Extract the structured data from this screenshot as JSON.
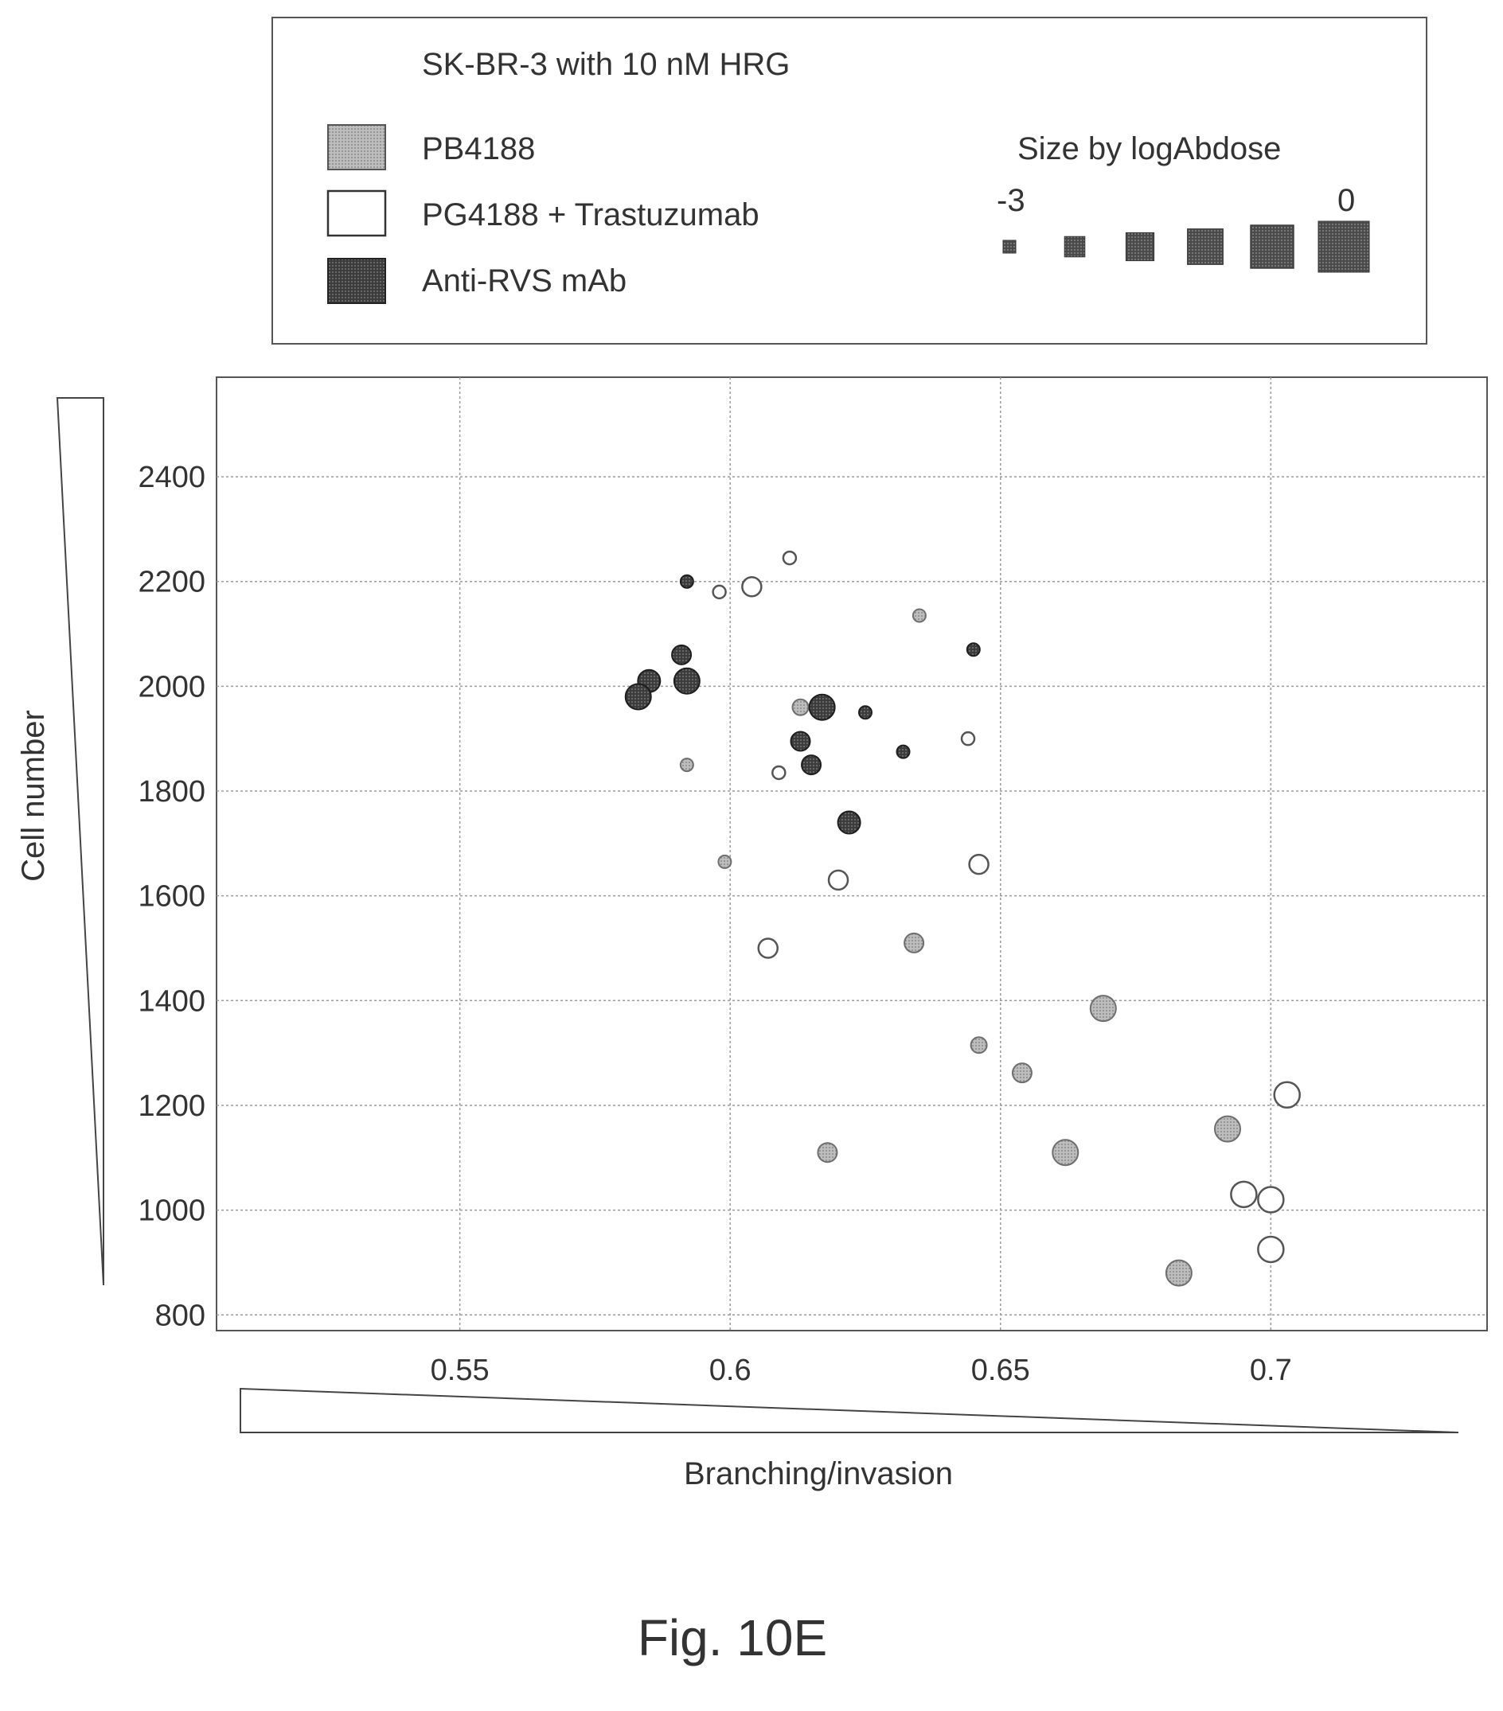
{
  "chart_data": {
    "type": "scatter",
    "title": "SK-BR-3 with 10 nM HRG",
    "xlabel": "Branching/invasion",
    "ylabel": "Cell number",
    "xlim": [
      0.505,
      0.74
    ],
    "ylim": [
      770,
      2590
    ],
    "x_ticks": [
      "0.55",
      "0.6",
      "0.65",
      "0.7"
    ],
    "x_tick_values": [
      0.55,
      0.6,
      0.65,
      0.7
    ],
    "y_ticks": [
      "800",
      "1000",
      "1200",
      "1400",
      "1600",
      "1800",
      "2000",
      "2200",
      "2400"
    ],
    "y_tick_values": [
      800,
      1000,
      1200,
      1400,
      1600,
      1800,
      2000,
      2200,
      2400
    ],
    "grid": true,
    "size_legend": {
      "label": "Size by logAbdose",
      "min_label": "-3",
      "max_label": "0",
      "steps": [
        -3,
        -2.4,
        -1.8,
        -1.2,
        -0.6,
        0
      ]
    },
    "series": [
      {
        "name": "PB4188",
        "color": "#9a9a9a",
        "stroke": "#6e6e6e",
        "points": [
          {
            "x": 0.592,
            "y": 1850,
            "logdose": -3
          },
          {
            "x": 0.599,
            "y": 1665,
            "logdose": -3
          },
          {
            "x": 0.635,
            "y": 2135,
            "logdose": -3
          },
          {
            "x": 0.613,
            "y": 1960,
            "logdose": -2.4
          },
          {
            "x": 0.634,
            "y": 1510,
            "logdose": -1.8
          },
          {
            "x": 0.646,
            "y": 1315,
            "logdose": -2.4
          },
          {
            "x": 0.654,
            "y": 1262,
            "logdose": -1.8
          },
          {
            "x": 0.669,
            "y": 1385,
            "logdose": -0.6
          },
          {
            "x": 0.692,
            "y": 1155,
            "logdose": -0.6
          },
          {
            "x": 0.662,
            "y": 1110,
            "logdose": -0.6
          },
          {
            "x": 0.618,
            "y": 1110,
            "logdose": -1.8
          },
          {
            "x": 0.683,
            "y": 880,
            "logdose": -0.6
          }
        ]
      },
      {
        "name": "PG4188 + Trastuzumab",
        "color": "#ffffff",
        "stroke": "#555555",
        "points": [
          {
            "x": 0.611,
            "y": 2245,
            "logdose": -3
          },
          {
            "x": 0.598,
            "y": 2180,
            "logdose": -3
          },
          {
            "x": 0.604,
            "y": 2190,
            "logdose": -1.8
          },
          {
            "x": 0.644,
            "y": 1900,
            "logdose": -3
          },
          {
            "x": 0.609,
            "y": 1835,
            "logdose": -3
          },
          {
            "x": 0.646,
            "y": 1660,
            "logdose": -1.8
          },
          {
            "x": 0.62,
            "y": 1630,
            "logdose": -1.8
          },
          {
            "x": 0.607,
            "y": 1500,
            "logdose": -1.8
          },
          {
            "x": 0.703,
            "y": 1220,
            "logdose": -0.6
          },
          {
            "x": 0.695,
            "y": 1030,
            "logdose": -0.6
          },
          {
            "x": 0.7,
            "y": 1020,
            "logdose": -0.6
          },
          {
            "x": 0.7,
            "y": 925,
            "logdose": -0.6
          }
        ]
      },
      {
        "name": "Anti-RVS mAb",
        "color": "#3a3a3a",
        "stroke": "#1e1e1e",
        "points": [
          {
            "x": 0.592,
            "y": 2200,
            "logdose": -3
          },
          {
            "x": 0.591,
            "y": 2060,
            "logdose": -1.8
          },
          {
            "x": 0.585,
            "y": 2010,
            "logdose": -1.2
          },
          {
            "x": 0.583,
            "y": 1980,
            "logdose": -0.6
          },
          {
            "x": 0.592,
            "y": 2010,
            "logdose": -0.6
          },
          {
            "x": 0.617,
            "y": 1960,
            "logdose": -0.6
          },
          {
            "x": 0.625,
            "y": 1950,
            "logdose": -3
          },
          {
            "x": 0.645,
            "y": 2070,
            "logdose": -3
          },
          {
            "x": 0.613,
            "y": 1895,
            "logdose": -1.8
          },
          {
            "x": 0.632,
            "y": 1875,
            "logdose": -3
          },
          {
            "x": 0.615,
            "y": 1850,
            "logdose": -1.8
          },
          {
            "x": 0.622,
            "y": 1740,
            "logdose": -1.2
          }
        ]
      }
    ]
  },
  "figure_label": "Fig. 10E"
}
